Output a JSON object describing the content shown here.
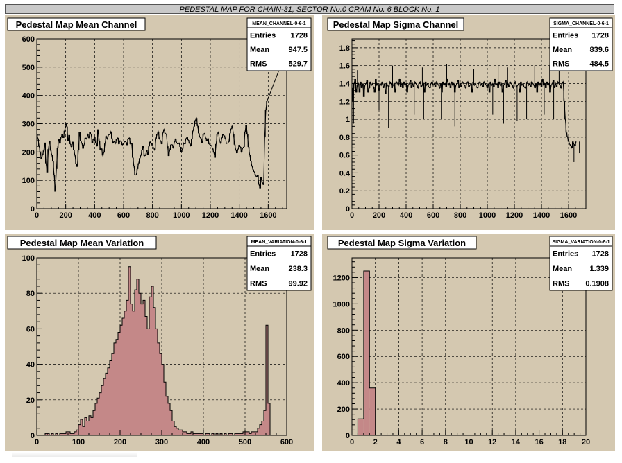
{
  "banner": {
    "title": "PEDESTAL MAP FOR CHAIN-31, SECTOR No.0 CRAM No. 6 BLOCK No. 1"
  },
  "colors": {
    "pad_bg": "#d4c8b0",
    "hist_fill": "#c48888",
    "line": "#000000",
    "banner_bg": "#c9c9c9"
  },
  "chart_data": [
    {
      "id": "mean-channel",
      "type": "line",
      "title": "Pedestal Map Mean Channel",
      "stats": {
        "name": "MEAN_CHANNEL-0-6-1",
        "rows": [
          [
            "Entries",
            "1728"
          ],
          [
            "Mean",
            "947.5"
          ],
          [
            "RMS",
            "529.7"
          ]
        ]
      },
      "xlim": [
        0,
        1728
      ],
      "ylim": [
        0,
        600
      ],
      "xticks": [
        0,
        200,
        400,
        600,
        800,
        1000,
        1200,
        1400,
        1600
      ],
      "xtick_labels": [
        "0",
        "200",
        "400",
        "600",
        "800",
        "1000",
        "1200",
        "1400",
        "1600"
      ],
      "yticks": [
        0,
        100,
        200,
        300,
        400,
        500,
        600
      ],
      "ytick_labels": [
        "0",
        "100",
        "200",
        "300",
        "400",
        "500",
        "600"
      ],
      "grid": true,
      "x_step": 8,
      "values": [
        262,
        248,
        222,
        198,
        175,
        190,
        205,
        233,
        160,
        128,
        210,
        240,
        205,
        190,
        168,
        118,
        60,
        140,
        215,
        246,
        230,
        252,
        262,
        250,
        275,
        300,
        290,
        240,
        260,
        228,
        218,
        236,
        208,
        188,
        158,
        148,
        208,
        270,
        240,
        230,
        212,
        226,
        250,
        246,
        262,
        250,
        270,
        262,
        232,
        246,
        252,
        232,
        220,
        280,
        240,
        208,
        212,
        188,
        198,
        230,
        256,
        246,
        260,
        262,
        272,
        248,
        232,
        238,
        230,
        246,
        250,
        228,
        240,
        236,
        225,
        230,
        238,
        235,
        225,
        245,
        250,
        228,
        230,
        180,
        150,
        118,
        120,
        140,
        160,
        178,
        188,
        208,
        222,
        186,
        188,
        208,
        190,
        220,
        236,
        230,
        222,
        215,
        206,
        248,
        262,
        272,
        246,
        240,
        228,
        268,
        280,
        266,
        262,
        220,
        186,
        208,
        226,
        226,
        215,
        235,
        246,
        232,
        228,
        232,
        218,
        200,
        212,
        232,
        228,
        248,
        252,
        242,
        230,
        222,
        246,
        275,
        290,
        312,
        320,
        292,
        266,
        252,
        248,
        232,
        262,
        266,
        250,
        240,
        248,
        228,
        225,
        222,
        212,
        198,
        180,
        228,
        262,
        270,
        240,
        230,
        250,
        262,
        258,
        248,
        230,
        232,
        236,
        266,
        282,
        292,
        262,
        226,
        208,
        196,
        210,
        225,
        218,
        200,
        214,
        218,
        272,
        296,
        262,
        218,
        190,
        168,
        150,
        138,
        130,
        120,
        112,
        118,
        85,
        72,
        112,
        92,
        84,
        252,
        350,
        380
      ],
      "x_tail": [
        1730
      ],
      "y_tail": [
        560
      ]
    },
    {
      "id": "sigma-channel",
      "type": "line",
      "title": "Pedestal Map Sigma Channel",
      "stats": {
        "name": "SIGMA_CHANNEL-0-6-1",
        "rows": [
          [
            "Entries",
            "1728"
          ],
          [
            "Mean",
            "839.6"
          ],
          [
            "RMS",
            "484.5"
          ]
        ]
      },
      "xlim": [
        0,
        1728
      ],
      "ylim": [
        0,
        1.9
      ],
      "xticks": [
        0,
        200,
        400,
        600,
        800,
        1000,
        1200,
        1400,
        1600
      ],
      "xtick_labels": [
        "0",
        "200",
        "400",
        "600",
        "800",
        "1000",
        "1200",
        "1400",
        "1600"
      ],
      "yticks": [
        0,
        0.2,
        0.4,
        0.6,
        0.8,
        1,
        1.2,
        1.4,
        1.6,
        1.8
      ],
      "ytick_labels": [
        "0",
        "0.2",
        "0.4",
        "0.6",
        "0.8",
        "1",
        "1.2",
        "1.4",
        "1.6",
        "1.8"
      ],
      "grid": true,
      "x_step": 8,
      "values": [
        1.35,
        1.2,
        1.4,
        1.45,
        1.3,
        1.38,
        1.4,
        1.3,
        1.42,
        1.35,
        1.4,
        1.25,
        1.38,
        1.4,
        1.44,
        1.3,
        1.35,
        1.42,
        1.38,
        1.4,
        1.36,
        1.3,
        1.45,
        1.38,
        1.4,
        1.32,
        1.4,
        1.38,
        1.42,
        1.35,
        1.4,
        1.28,
        1.4,
        1.38,
        1.36,
        1.42,
        1.4,
        1.35,
        1.38,
        1.4,
        1.3,
        1.42,
        1.4,
        1.38,
        1.45,
        1.36,
        1.4,
        1.35,
        1.42,
        1.38,
        1.4,
        1.3,
        1.38,
        1.4,
        1.44,
        1.35,
        1.4,
        1.36,
        1.42,
        1.4,
        1.38,
        1.35,
        1.4,
        1.42,
        1.36,
        1.38,
        1.4,
        1.3,
        1.42,
        1.38,
        1.4,
        1.36,
        1.35,
        1.4,
        1.42,
        1.38,
        1.4,
        1.36,
        1.42,
        1.4,
        1.38,
        1.35,
        1.4,
        1.3,
        1.42,
        1.38,
        1.4,
        1.36,
        1.45,
        1.38,
        1.4,
        1.35,
        1.42,
        1.38,
        1.4,
        1.3,
        1.38,
        1.4,
        1.44,
        1.35,
        1.4,
        1.36,
        1.42,
        1.4,
        1.38,
        1.35,
        1.4,
        1.42,
        1.36,
        1.38,
        1.4,
        1.3,
        1.42,
        1.38,
        1.4,
        1.36,
        1.35,
        1.4,
        1.42,
        1.38,
        1.4,
        1.36,
        1.42,
        1.4,
        1.38,
        1.35,
        1.4,
        1.3,
        1.42,
        1.38,
        1.4,
        1.36,
        1.45,
        1.38,
        1.4,
        1.35,
        1.42,
        1.38,
        1.4,
        1.3,
        1.38,
        1.4,
        1.44,
        1.35,
        1.4,
        1.36,
        1.42,
        1.4,
        1.38,
        1.35,
        1.4,
        1.42,
        1.36,
        1.38,
        1.4,
        1.3,
        1.42,
        1.38,
        1.4,
        1.36,
        1.35,
        1.4,
        1.42,
        1.38,
        1.4,
        1.36,
        1.42,
        1.4,
        1.38,
        1.35,
        1.4,
        1.3,
        1.42,
        1.38,
        1.4,
        1.36,
        1.45,
        1.38,
        1.4,
        1.35,
        1.42,
        1.38,
        1.4,
        1.3,
        1.38,
        1.4,
        1.44,
        1.35,
        1.4,
        1.36,
        1.42,
        1.4,
        1.38,
        1.35,
        1.4,
        1.42,
        1.2,
        1.0,
        0.85,
        0.8,
        0.75,
        0.72,
        0.7,
        0.68,
        0.75,
        0.72,
        0.7,
        0.75
      ],
      "spikes_high": [
        [
          40,
          1.55
        ],
        [
          300,
          1.6
        ],
        [
          520,
          1.58
        ],
        [
          700,
          1.62
        ],
        [
          900,
          1.56
        ],
        [
          1080,
          1.6
        ],
        [
          1150,
          1.58
        ],
        [
          1350,
          1.6
        ],
        [
          1460,
          1.6
        ],
        [
          1530,
          1.58
        ]
      ],
      "spikes_low": [
        [
          12,
          0.95
        ],
        [
          200,
          1.1
        ],
        [
          270,
          0.9
        ],
        [
          460,
          1.05
        ],
        [
          530,
          1.0
        ],
        [
          660,
          1.0
        ],
        [
          760,
          0.92
        ],
        [
          1040,
          1.05
        ],
        [
          1120,
          0.95
        ],
        [
          1220,
          0.98
        ],
        [
          1290,
          1.0
        ],
        [
          1420,
          1.05
        ],
        [
          1490,
          1.0
        ],
        [
          1640,
          0.52
        ],
        [
          1680,
          0.62
        ]
      ]
    },
    {
      "id": "mean-variation",
      "type": "bar",
      "title": "Pedestal Map Mean Variation",
      "stats": {
        "name": "MEAN_VARIATION-0-6-1",
        "rows": [
          [
            "Entries",
            "1728"
          ],
          [
            "Mean",
            "238.3"
          ],
          [
            "RMS",
            "99.92"
          ]
        ]
      },
      "xlim": [
        0,
        600
      ],
      "ylim": [
        0,
        100
      ],
      "xticks": [
        0,
        100,
        200,
        300,
        400,
        500,
        600
      ],
      "xtick_labels": [
        "0",
        "100",
        "200",
        "300",
        "400",
        "500",
        "600"
      ],
      "yticks": [
        0,
        20,
        40,
        60,
        80,
        100
      ],
      "ytick_labels": [
        "0",
        "20",
        "40",
        "60",
        "80",
        "100"
      ],
      "grid": true,
      "bin_start": 0,
      "bin_width": 5,
      "values": [
        0,
        0,
        0,
        0,
        1,
        1,
        0,
        1,
        0,
        1,
        0,
        1,
        1,
        1,
        2,
        2,
        1,
        1,
        2,
        3,
        6,
        9,
        5,
        10,
        8,
        11,
        10,
        14,
        18,
        21,
        24,
        28,
        32,
        35,
        38,
        42,
        46,
        52,
        54,
        58,
        62,
        66,
        70,
        76,
        95,
        74,
        70,
        82,
        88,
        80,
        74,
        76,
        67,
        60,
        78,
        84,
        72,
        60,
        52,
        46,
        40,
        30,
        22,
        18,
        14,
        8,
        5,
        4,
        3,
        3,
        2,
        2,
        1,
        1,
        2,
        1,
        1,
        1,
        1,
        1,
        0,
        1,
        1,
        0,
        1,
        0,
        1,
        0,
        1,
        0,
        1,
        0,
        1,
        1,
        0,
        1,
        1,
        1,
        1,
        2,
        2,
        2,
        1,
        2,
        2,
        2,
        4,
        6,
        8,
        14,
        62,
        18,
        0,
        0,
        0,
        0,
        0,
        0,
        0,
        0
      ]
    },
    {
      "id": "sigma-variation",
      "type": "bar",
      "title": "Pedestal Map Sigma Variation",
      "stats": {
        "name": "SIGMA_VARIATION-0-6-1",
        "rows": [
          [
            "Entries",
            "1728"
          ],
          [
            "Mean",
            "1.339"
          ],
          [
            "RMS",
            "0.1908"
          ]
        ]
      },
      "xlim": [
        0,
        20
      ],
      "ylim": [
        0,
        1350
      ],
      "xticks": [
        0,
        2,
        4,
        6,
        8,
        10,
        12,
        14,
        16,
        18,
        20
      ],
      "xtick_labels": [
        "0",
        "2",
        "4",
        "6",
        "8",
        "10",
        "12",
        "14",
        "16",
        "18",
        "20"
      ],
      "yticks": [
        0,
        200,
        400,
        600,
        800,
        1000,
        1200
      ],
      "ytick_labels": [
        "0",
        "200",
        "400",
        "600",
        "800",
        "1000",
        "1200"
      ],
      "grid": true,
      "bin_start": 0,
      "bin_width": 0.5,
      "values": [
        0,
        125,
        1250,
        360,
        0,
        0,
        0,
        0,
        0,
        0,
        0,
        0,
        0,
        0,
        0,
        0,
        0,
        0,
        0,
        0,
        0,
        0,
        0,
        0,
        0,
        0,
        0,
        0,
        0,
        0,
        0,
        0,
        0,
        0,
        0,
        0,
        0,
        0,
        0,
        0
      ]
    }
  ]
}
